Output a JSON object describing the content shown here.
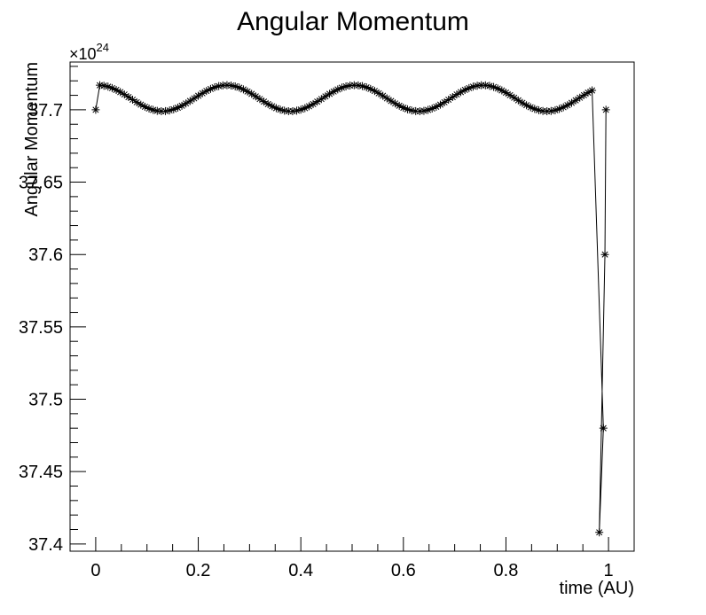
{
  "chart_data": {
    "type": "line",
    "title": "Angular Momentum",
    "xlabel": "time (AU)",
    "ylabel": "Angular Momentum",
    "y_multiplier_label": "×10",
    "y_multiplier_exponent": "24",
    "xlim": [
      -0.05,
      1.05
    ],
    "ylim": [
      37.395,
      37.733
    ],
    "x_ticks": [
      0,
      0.2,
      0.4,
      0.6,
      0.8,
      1
    ],
    "x_tick_labels": [
      "0",
      "0.2",
      "0.4",
      "0.6",
      "0.8",
      "1"
    ],
    "y_ticks": [
      37.4,
      37.45,
      37.5,
      37.55,
      37.6,
      37.65,
      37.7
    ],
    "y_tick_labels": [
      "37.4",
      "37.45",
      "37.5",
      "37.55",
      "37.6",
      "37.65",
      "37.7"
    ],
    "marker": "asterisk",
    "line_color": "#000000",
    "grid": false,
    "legend": "none",
    "series": [
      {
        "oscillation": {
          "x_start": 0.0,
          "y_start": 37.7,
          "x_first": 0.008,
          "x_last": 0.975,
          "step": 0.008,
          "baseline": 37.708,
          "amplitude": 0.009,
          "period": 0.25,
          "phase_zero_at_max": 0.005
        },
        "tail_points": [
          {
            "x": 0.99,
            "y": 37.48
          },
          {
            "x": 0.982,
            "y": 37.408
          },
          {
            "x": 0.993,
            "y": 37.6
          },
          {
            "x": 0.995,
            "y": 37.7
          }
        ]
      }
    ]
  }
}
